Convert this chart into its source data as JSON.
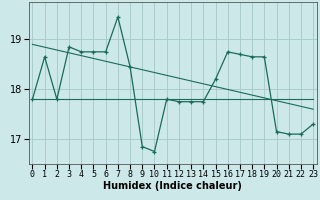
{
  "xlabel": "Humidex (Indice chaleur)",
  "background_color": "#cce8e8",
  "grid_color": "#aacccc",
  "line_color": "#1a6b5a",
  "x_ticks": [
    0,
    1,
    2,
    3,
    4,
    5,
    6,
    7,
    8,
    9,
    10,
    11,
    12,
    13,
    14,
    15,
    16,
    17,
    18,
    19,
    20,
    21,
    22,
    23
  ],
  "y_ticks": [
    17,
    18,
    19
  ],
  "ylim": [
    16.5,
    19.75
  ],
  "xlim": [
    -0.3,
    23.3
  ],
  "series1_x": [
    0,
    1,
    2,
    3,
    4,
    5,
    6,
    7,
    8,
    9,
    10,
    11,
    12,
    13,
    14,
    15,
    16,
    17,
    18,
    19,
    20,
    21,
    22,
    23
  ],
  "series1_y": [
    17.8,
    18.65,
    17.8,
    18.85,
    18.75,
    18.75,
    18.75,
    19.45,
    18.45,
    16.85,
    16.75,
    17.8,
    17.75,
    17.75,
    17.75,
    18.2,
    18.75,
    18.7,
    18.65,
    18.65,
    17.15,
    17.1,
    17.1,
    17.3
  ],
  "trend1_x": [
    0,
    23
  ],
  "trend1_y": [
    18.9,
    17.6
  ],
  "trend2_x": [
    0,
    23
  ],
  "trend2_y": [
    17.8,
    17.8
  ],
  "axis_fontsize": 7,
  "tick_fontsize": 6
}
